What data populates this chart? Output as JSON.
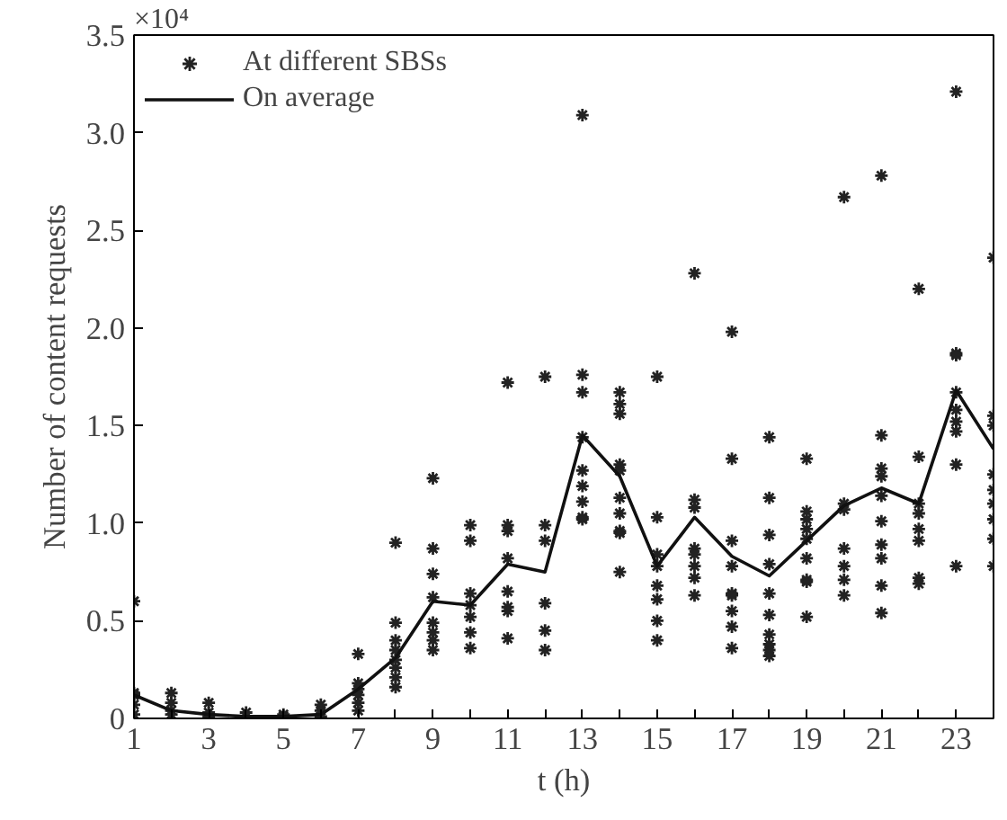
{
  "chart_data": {
    "type": "scatter",
    "xlabel": "t (h)",
    "ylabel": "Number of content requests",
    "annotations": [
      "×10⁴"
    ],
    "xlim": [
      1,
      24
    ],
    "xticks": [
      1,
      {
        "value": 2,
        "label": null
      },
      3,
      {
        "value": 4,
        "label": null
      },
      5,
      {
        "value": 6,
        "label": null
      },
      7,
      {
        "value": 8,
        "label": null
      },
      9,
      {
        "value": 10,
        "label": null
      },
      11,
      {
        "value": 12,
        "label": null
      },
      13,
      {
        "value": 14,
        "label": null
      },
      15,
      {
        "value": 16,
        "label": null
      },
      17,
      {
        "value": 18,
        "label": null
      },
      19,
      {
        "value": 20,
        "label": null
      },
      21,
      {
        "value": 22,
        "label": null
      },
      23,
      {
        "value": 24,
        "label": null
      }
    ],
    "ylim": [
      0,
      3.5
    ],
    "yticks": [
      0,
      0.5,
      {
        "value": 1,
        "label": "1.0"
      },
      1.5,
      {
        "value": 2,
        "label": "2.0"
      },
      2.5,
      {
        "value": 3,
        "label": "3.0"
      },
      3.5
    ],
    "grid": false,
    "legend": "top left",
    "series": [
      {
        "name": "At different SBSs",
        "marker": "cross",
        "color": "#222222",
        "x": [
          1,
          1,
          1,
          1,
          1,
          2,
          2,
          2,
          2,
          3,
          3,
          3,
          4,
          4,
          5,
          5,
          6,
          6,
          6,
          7,
          7,
          7,
          7,
          7,
          7,
          8,
          8,
          8,
          8,
          8,
          8,
          8,
          8,
          9,
          9,
          9,
          9,
          9,
          9,
          9,
          9,
          10,
          10,
          10,
          10,
          10,
          10,
          10,
          11,
          11,
          11,
          11,
          11,
          11,
          11,
          11,
          12,
          12,
          12,
          12,
          12,
          12,
          13,
          13,
          13,
          13,
          13,
          13,
          13,
          13,
          13,
          14,
          14,
          14,
          14,
          14,
          14,
          14,
          14,
          14,
          14,
          15,
          15,
          15,
          15,
          15,
          15,
          15,
          15,
          16,
          16,
          16,
          16,
          16,
          16,
          16,
          16,
          17,
          17,
          17,
          17,
          17,
          17,
          17,
          17,
          17,
          18,
          18,
          18,
          18,
          18,
          18,
          18,
          18,
          18,
          18,
          19,
          19,
          19,
          19,
          19,
          19,
          19,
          19,
          19,
          20,
          20,
          20,
          20,
          20,
          20,
          20,
          21,
          21,
          21,
          21,
          21,
          21,
          21,
          21,
          21,
          21,
          22,
          22,
          22,
          22,
          22,
          22,
          22,
          22,
          23,
          23,
          23,
          23,
          23,
          23,
          23,
          23,
          23,
          24,
          24,
          24,
          24,
          24,
          24,
          24,
          24,
          24
        ],
        "values": [
          0.6,
          0.13,
          0.12,
          0.07,
          0.02,
          0.13,
          0.08,
          0.04,
          0.02,
          0.08,
          0.03,
          0.01,
          0.03,
          0.01,
          0.02,
          0.01,
          0.07,
          0.04,
          0.01,
          0.33,
          0.18,
          0.15,
          0.12,
          0.08,
          0.04,
          0.9,
          0.49,
          0.4,
          0.35,
          0.3,
          0.26,
          0.21,
          0.16,
          1.23,
          0.87,
          0.74,
          0.62,
          0.49,
          0.44,
          0.4,
          0.35,
          0.99,
          0.91,
          0.64,
          0.58,
          0.52,
          0.44,
          0.36,
          1.72,
          0.99,
          0.96,
          0.82,
          0.65,
          0.57,
          0.55,
          0.41,
          1.75,
          0.99,
          0.91,
          0.59,
          0.45,
          0.35,
          3.09,
          1.76,
          1.67,
          1.44,
          1.27,
          1.19,
          1.11,
          1.03,
          1.02,
          1.67,
          1.61,
          1.56,
          1.3,
          1.27,
          1.13,
          1.05,
          0.96,
          0.95,
          0.75,
          1.75,
          1.03,
          0.84,
          0.78,
          0.68,
          0.61,
          0.5,
          0.4,
          2.28,
          1.12,
          1.08,
          0.87,
          0.84,
          0.78,
          0.72,
          0.63,
          1.98,
          1.33,
          0.91,
          0.78,
          0.64,
          0.63,
          0.55,
          0.47,
          0.36,
          1.44,
          1.13,
          0.94,
          0.79,
          0.64,
          0.53,
          0.43,
          0.38,
          0.35,
          0.32,
          1.33,
          1.06,
          1.02,
          0.97,
          0.92,
          0.82,
          0.71,
          0.7,
          0.52,
          2.67,
          1.1,
          1.07,
          0.87,
          0.78,
          0.71,
          0.63,
          2.78,
          1.45,
          1.28,
          1.24,
          1.14,
          1.01,
          0.89,
          0.82,
          0.68,
          0.54,
          2.2,
          1.34,
          1.1,
          1.05,
          0.97,
          0.91,
          0.72,
          0.69,
          3.21,
          1.87,
          1.86,
          1.67,
          1.58,
          1.52,
          1.47,
          1.3,
          0.78,
          2.36,
          1.55,
          1.5,
          1.25,
          1.17,
          1.1,
          1.02,
          0.92,
          0.78
        ]
      },
      {
        "name": "On average",
        "type": "line",
        "line_style": "solid",
        "color": "#111111",
        "x": [
          1,
          2,
          3,
          4,
          5,
          6,
          7,
          8,
          9,
          10,
          11,
          12,
          13,
          14,
          15,
          16,
          17,
          18,
          19,
          20,
          21,
          22,
          23,
          24
        ],
        "values": [
          0.12,
          0.04,
          0.02,
          0.01,
          0.01,
          0.02,
          0.15,
          0.31,
          0.6,
          0.58,
          0.79,
          0.75,
          1.45,
          1.24,
          0.78,
          1.03,
          0.83,
          0.73,
          0.91,
          1.09,
          1.18,
          1.1,
          1.68,
          1.38
        ]
      }
    ]
  }
}
